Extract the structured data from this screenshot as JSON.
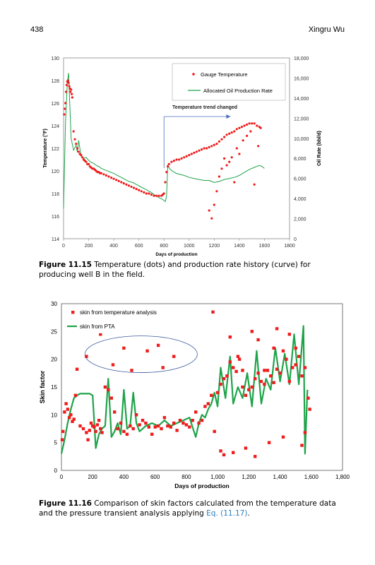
{
  "header": {
    "page_number": "438",
    "author": "Xingru Wu"
  },
  "figure_11_15": {
    "caption_label": "Figure 11.15",
    "caption_text": "Temperature (dots) and production rate history (curve) for producing well B in the field."
  },
  "figure_11_16": {
    "caption_label": "Figure 11.16",
    "caption_text": "Comparison of skin factors calculated from the temperature data and the pressure transient analysis applying",
    "caption_ref": "Eq. (11.17)",
    "caption_end": "."
  },
  "colors": {
    "red": "#ee1c1c",
    "green": "#1fa34a",
    "ellipse": "#3d5a9e"
  },
  "chart_data": [
    {
      "type": "scatter",
      "xlabel": "Days of production",
      "ylabel": "Temperature (°F)",
      "y2label": "Oil Rate (bbl/d)",
      "xlim": [
        0,
        1800
      ],
      "ylim": [
        114,
        130
      ],
      "y2lim": [
        0,
        18000
      ],
      "x_ticks": [
        "0",
        "200",
        "400",
        "600",
        "800",
        "1000",
        "1200",
        "1400",
        "1600",
        "1800"
      ],
      "y_ticks": [
        "114",
        "116",
        "118",
        "120",
        "122",
        "124",
        "126",
        "128",
        "130"
      ],
      "y2_ticks": [
        "0",
        "2,000",
        "4,000",
        "6,000",
        "8,000",
        "10,000",
        "12,000",
        "14,000",
        "16,000",
        "18,000"
      ],
      "legend": [
        "Gauge Temperature",
        "Allocated Oil Production Rate"
      ],
      "legend_position": "top-right",
      "annotation": "Temperature  trend changed",
      "series": [
        {
          "name": "Gauge Temperature",
          "x": [
            5,
            10,
            15,
            20,
            25,
            30,
            35,
            40,
            45,
            50,
            55,
            60,
            65,
            70,
            80,
            90,
            100,
            110,
            120,
            130,
            140,
            150,
            160,
            170,
            180,
            190,
            200,
            210,
            220,
            230,
            240,
            250,
            260,
            270,
            280,
            290,
            300,
            320,
            340,
            360,
            380,
            400,
            420,
            440,
            460,
            480,
            500,
            520,
            540,
            560,
            580,
            600,
            620,
            640,
            660,
            680,
            700,
            720,
            740,
            760,
            780,
            790,
            800,
            810,
            820,
            830,
            840,
            860,
            880,
            900,
            920,
            940,
            960,
            980,
            1000,
            1020,
            1040,
            1060,
            1080,
            1100,
            1120,
            1140,
            1160,
            1180,
            1200,
            1220,
            1240,
            1260,
            1280,
            1300,
            1320,
            1340,
            1360,
            1380,
            1400,
            1420,
            1440,
            1460,
            1480,
            1500,
            1520,
            1540,
            1560,
            1570,
            1160,
            1180,
            1200,
            1220,
            1240,
            1260,
            1280,
            1300,
            1320,
            1340,
            1360,
            1380,
            1400,
            1430,
            1460,
            1490,
            1520,
            1550
          ],
          "y": [
            125.0,
            125.5,
            126.0,
            127.0,
            127.6,
            127.9,
            128.0,
            127.8,
            127.5,
            127.3,
            127.0,
            127.2,
            126.8,
            126.5,
            123.5,
            122.8,
            122.4,
            122.0,
            121.7,
            121.5,
            121.4,
            121.2,
            121.0,
            120.9,
            120.8,
            120.6,
            120.6,
            120.4,
            120.3,
            120.2,
            120.2,
            120.1,
            120.0,
            119.9,
            119.9,
            119.8,
            119.8,
            119.7,
            119.6,
            119.5,
            119.4,
            119.3,
            119.2,
            119.1,
            119.0,
            118.9,
            118.8,
            118.7,
            118.6,
            118.5,
            118.4,
            118.3,
            118.2,
            118.1,
            118.0,
            118.0,
            117.9,
            117.8,
            117.8,
            117.8,
            117.8,
            117.9,
            118.0,
            119.0,
            119.9,
            120.4,
            120.6,
            120.8,
            120.9,
            121.0,
            121.0,
            121.1,
            121.2,
            121.3,
            121.4,
            121.5,
            121.6,
            121.7,
            121.8,
            121.9,
            122.0,
            122.0,
            122.1,
            122.2,
            122.3,
            122.4,
            122.6,
            122.8,
            123.0,
            123.2,
            123.3,
            123.4,
            123.5,
            123.7,
            123.8,
            123.9,
            124.0,
            124.1,
            124.2,
            124.2,
            124.2,
            124.0,
            123.9,
            123.8,
            116.5,
            115.8,
            117.0,
            118.2,
            119.5,
            120.2,
            121.1,
            120.5,
            120.8,
            121.2,
            119.0,
            122.0,
            121.5,
            122.7,
            123.1,
            123.5,
            118.8,
            122.2
          ]
        },
        {
          "name": "Allocated Oil Production Rate",
          "x": [
            0,
            15,
            30,
            40,
            60,
            80,
            100,
            110,
            120,
            140,
            160,
            180,
            200,
            220,
            240,
            260,
            280,
            300,
            320,
            340,
            360,
            380,
            400,
            430,
            460,
            490,
            520,
            550,
            580,
            610,
            640,
            670,
            700,
            730,
            760,
            790,
            810,
            820,
            830,
            850,
            870,
            900,
            930,
            960,
            1000,
            1040,
            1080,
            1120,
            1160,
            1200,
            1240,
            1280,
            1320,
            1360,
            1400,
            1440,
            1480,
            1520,
            1560,
            1580,
            1600
          ],
          "y": [
            3000,
            11500,
            15500,
            16500,
            10000,
            8800,
            9300,
            8600,
            9800,
            8200,
            8000,
            8100,
            7800,
            7600,
            7500,
            7300,
            7200,
            7000,
            6900,
            6800,
            6700,
            6600,
            6500,
            6300,
            6100,
            5900,
            5700,
            5600,
            5400,
            5200,
            5000,
            4800,
            4600,
            4300,
            4100,
            3900,
            3700,
            4200,
            7300,
            6900,
            6700,
            6500,
            6400,
            6300,
            6100,
            6000,
            5900,
            5800,
            5800,
            5600,
            5700,
            5900,
            6000,
            6100,
            6300,
            6600,
            6900,
            7100,
            7300,
            7200,
            7000
          ]
        }
      ]
    },
    {
      "type": "scatter",
      "xlabel": "Days of production",
      "ylabel": "Skin factor",
      "xlim": [
        0,
        1800
      ],
      "ylim": [
        0,
        30
      ],
      "x_ticks": [
        "0",
        "200",
        "400",
        "600",
        "800",
        "1,000",
        "1,200",
        "1,400",
        "1,600",
        "1,800"
      ],
      "y_ticks": [
        "0",
        "5",
        "10",
        "15",
        "20",
        "25",
        "30"
      ],
      "legend": [
        "skin from temperature analysis",
        "skin from PTA"
      ],
      "legend_position": "top-left",
      "series": [
        {
          "name": "skin from temperature analysis",
          "x": [
            5,
            10,
            20,
            30,
            40,
            50,
            60,
            70,
            80,
            90,
            100,
            120,
            140,
            160,
            170,
            180,
            190,
            200,
            210,
            220,
            230,
            240,
            250,
            260,
            280,
            300,
            320,
            340,
            360,
            380,
            400,
            420,
            440,
            460,
            480,
            500,
            520,
            540,
            560,
            580,
            600,
            620,
            640,
            660,
            680,
            700,
            720,
            740,
            760,
            780,
            800,
            820,
            840,
            860,
            880,
            900,
            920,
            940,
            960,
            980,
            1000,
            1020,
            1040,
            1060,
            1080,
            1100,
            1120,
            1140,
            1160,
            1180,
            1200,
            1220,
            1240,
            1260,
            1280,
            1300,
            1320,
            1340,
            1360,
            1380,
            1400,
            1420,
            1440,
            1460,
            1480,
            1500,
            1520,
            1540,
            1560,
            1580,
            1590,
            160,
            250,
            330,
            400,
            550,
            620,
            650,
            720,
            450,
            1380,
            1460,
            1500,
            970,
            1080,
            1130,
            1160,
            1260,
            1300,
            1020,
            1040,
            1100,
            1180,
            1240,
            1330,
            1420,
            1540,
            1560,
            1220,
            1360
          ],
          "y": [
            5.5,
            7.0,
            10.5,
            12.0,
            11.0,
            9.5,
            10.0,
            8.8,
            9.2,
            13.5,
            18.2,
            8.0,
            7.5,
            6.8,
            5.5,
            7.2,
            8.5,
            8.0,
            7.8,
            7.0,
            8.2,
            9.0,
            7.5,
            6.8,
            15.0,
            14.5,
            13.0,
            10.5,
            7.5,
            8.5,
            7.0,
            6.5,
            8.0,
            7.5,
            10.0,
            8.2,
            9.0,
            8.5,
            7.8,
            6.5,
            7.8,
            8.0,
            7.5,
            9.5,
            8.0,
            7.8,
            8.5,
            7.2,
            9.0,
            8.5,
            8.2,
            7.8,
            9.0,
            10.5,
            8.5,
            9.0,
            11.5,
            12.0,
            13.5,
            7.0,
            14.0,
            15.5,
            16.5,
            17.0,
            19.5,
            18.5,
            17.8,
            20.0,
            15.0,
            13.5,
            14.5,
            15.0,
            16.5,
            17.5,
            16.0,
            15.5,
            18.0,
            17.0,
            15.8,
            18.2,
            17.5,
            21.5,
            20.0,
            16.0,
            18.5,
            19.0,
            20.5,
            17.0,
            18.5,
            13.0,
            11.0,
            20.5,
            24.5,
            19.0,
            22.0,
            21.5,
            22.5,
            18.5,
            20.5,
            18.0,
            25.5,
            24.5,
            22.0,
            28.5,
            24.0,
            20.5,
            18.0,
            23.5,
            18.0,
            3.5,
            2.8,
            3.2,
            4.0,
            2.5,
            5.0,
            6.0,
            4.5,
            6.8,
            25.0,
            22.0
          ]
        },
        {
          "name": "skin from PTA",
          "x": [
            0,
            20,
            40,
            60,
            80,
            100,
            120,
            150,
            180,
            200,
            220,
            240,
            260,
            280,
            300,
            320,
            340,
            360,
            380,
            400,
            420,
            440,
            460,
            480,
            500,
            540,
            580,
            620,
            660,
            700,
            740,
            780,
            820,
            860,
            880,
            900,
            920,
            940,
            960,
            980,
            1000,
            1020,
            1050,
            1080,
            1100,
            1130,
            1160,
            1190,
            1220,
            1250,
            1280,
            1310,
            1340,
            1370,
            1400,
            1430,
            1460,
            1490,
            1520,
            1550,
            1560,
            1575
          ],
          "y": [
            3.0,
            5.5,
            8.5,
            11.0,
            13.0,
            13.5,
            13.8,
            13.8,
            13.8,
            13.5,
            4.0,
            6.5,
            7.5,
            8.0,
            16.5,
            6.0,
            7.0,
            8.5,
            6.5,
            14.5,
            7.5,
            8.0,
            14.0,
            8.5,
            7.0,
            8.0,
            8.5,
            8.0,
            9.0,
            8.0,
            8.5,
            9.0,
            9.5,
            6.0,
            8.5,
            10.0,
            9.5,
            11.0,
            12.0,
            14.0,
            11.5,
            18.5,
            13.0,
            20.5,
            12.0,
            15.0,
            13.0,
            17.5,
            11.5,
            21.5,
            12.0,
            16.5,
            14.5,
            22.0,
            16.0,
            21.0,
            15.5,
            24.5,
            15.5,
            26.0,
            3.0,
            14.5
          ]
        }
      ]
    }
  ]
}
